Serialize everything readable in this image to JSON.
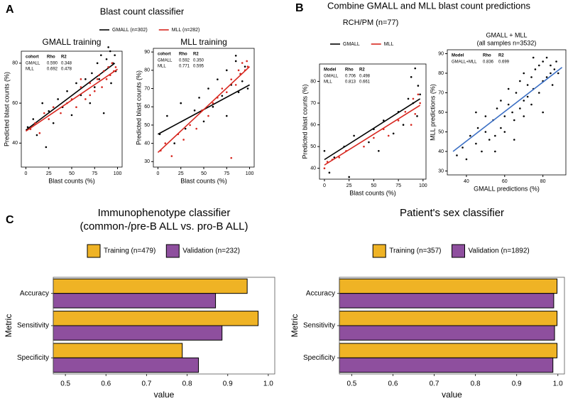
{
  "panels": [
    {
      "label": "A",
      "title": "Blast count classifier"
    },
    {
      "label": "B",
      "title": "Combine GMALL and MLL blast count predictions",
      "subtitle": "RCH/PM (n=77)"
    },
    {
      "label": "C"
    }
  ],
  "chart_data": [
    {
      "type": "scatter",
      "title": "GMALL training",
      "x_label": "Blast counts (%)",
      "y_label": "Predicted blast counts (%)",
      "xlim": [
        -5,
        105
      ],
      "ylim": [
        28,
        86
      ],
      "xticks": [
        0,
        25,
        50,
        75,
        100
      ],
      "yticks": [
        40,
        60,
        80
      ],
      "table": {
        "header": [
          "cohort",
          "Rho",
          "R2"
        ],
        "rows": [
          [
            "GMALL",
            "0.590",
            "0.348"
          ],
          [
            "MLL",
            "0.692",
            "0.478"
          ]
        ]
      },
      "series": [
        {
          "name": "GMALL (n=302)",
          "color": "#000000",
          "x": [
            2,
            8,
            12,
            18,
            22,
            25,
            30,
            35,
            40,
            45,
            50,
            55,
            60,
            65,
            70,
            72,
            75,
            78,
            80,
            82,
            85,
            88,
            90,
            92,
            95,
            97,
            98,
            85,
            90,
            93
          ],
          "y": [
            48,
            52,
            44,
            60,
            38,
            56,
            50,
            62,
            58,
            66,
            54,
            70,
            64,
            72,
            60,
            75,
            68,
            80,
            72,
            84,
            76,
            82,
            78,
            86,
            80,
            84,
            76,
            55,
            88,
            70
          ],
          "fit": {
            "x": [
              0,
              97
            ],
            "y": [
              46.5,
              80
            ]
          }
        },
        {
          "name": "MLL (n=282)",
          "color": "#d7261e",
          "x": [
            5,
            10,
            15,
            20,
            25,
            30,
            38,
            45,
            50,
            55,
            60,
            65,
            70,
            75,
            78,
            80,
            83,
            85,
            88,
            90,
            92,
            94,
            96,
            98,
            70,
            60
          ],
          "y": [
            47,
            50,
            45,
            55,
            52,
            58,
            55,
            60,
            62,
            58,
            68,
            62,
            70,
            66,
            72,
            74,
            68,
            76,
            72,
            78,
            74,
            80,
            76,
            78,
            64,
            72
          ],
          "fit": {
            "x": [
              0,
              100
            ],
            "y": [
              46,
              77
            ]
          }
        }
      ]
    },
    {
      "type": "scatter",
      "title": "MLL training",
      "x_label": "Blast counts (%)",
      "y_label": "Predicted blast counts (%)",
      "xlim": [
        -5,
        105
      ],
      "ylim": [
        27,
        92
      ],
      "xticks": [
        0,
        25,
        50,
        75,
        100
      ],
      "yticks": [
        30,
        40,
        50,
        60,
        70,
        80,
        90
      ],
      "table": {
        "header": [
          "cohort",
          "Rho",
          "R2"
        ],
        "rows": [
          [
            "GMALL",
            "0.592",
            "0.350"
          ],
          [
            "MLL",
            "0.771",
            "0.595"
          ]
        ]
      },
      "series": [
        {
          "color": "#000000",
          "x": [
            2,
            10,
            18,
            25,
            30,
            40,
            45,
            50,
            55,
            60,
            65,
            70,
            75,
            80,
            85,
            88,
            90,
            92,
            95,
            98,
            75,
            85
          ],
          "y": [
            45,
            55,
            40,
            62,
            48,
            58,
            65,
            52,
            70,
            60,
            75,
            66,
            80,
            72,
            85,
            68,
            78,
            74,
            82,
            70,
            55,
            88
          ],
          "fit": {
            "x": [
              0,
              100
            ],
            "y": [
              45,
              72
            ]
          }
        },
        {
          "color": "#d7261e",
          "x": [
            3,
            8,
            15,
            22,
            28,
            35,
            42,
            48,
            55,
            60,
            65,
            70,
            75,
            80,
            85,
            88,
            90,
            92,
            95,
            97,
            98,
            80
          ],
          "y": [
            36,
            40,
            33,
            45,
            42,
            50,
            48,
            58,
            55,
            62,
            65,
            70,
            68,
            75,
            72,
            80,
            78,
            84,
            80,
            85,
            82,
            32
          ],
          "fit": {
            "x": [
              0,
              100
            ],
            "y": [
              35,
              82
            ]
          }
        }
      ]
    },
    {
      "type": "scatter",
      "x_label": "Blast counts (%)",
      "y_label": "Predicted blast counts (%)",
      "xlim": [
        -5,
        103
      ],
      "ylim": [
        35,
        88
      ],
      "xticks": [
        0,
        25,
        50,
        75,
        100
      ],
      "yticks": [
        40,
        50,
        60,
        70,
        80
      ],
      "table": {
        "header": [
          "Model",
          "Rho",
          "R2"
        ],
        "rows": [
          [
            "GMALL",
            "0.706",
            "0.498"
          ],
          [
            "MLL",
            "0.813",
            "0.661"
          ]
        ]
      },
      "series": [
        {
          "name": "GMALL",
          "color": "#000000",
          "x": [
            0,
            5,
            10,
            20,
            25,
            30,
            45,
            50,
            55,
            60,
            70,
            75,
            80,
            85,
            88,
            90,
            92,
            94,
            95,
            97
          ],
          "y": [
            48,
            38,
            45,
            50,
            36,
            55,
            52,
            58,
            48,
            62,
            56,
            66,
            60,
            72,
            82,
            70,
            86,
            64,
            78,
            74
          ],
          "fit": {
            "x": [
              0,
              97
            ],
            "y": [
              44,
              72
            ]
          }
        },
        {
          "name": "MLL",
          "color": "#d7261e",
          "x": [
            0,
            3,
            8,
            15,
            22,
            40,
            50,
            60,
            65,
            75,
            82,
            88,
            90,
            92,
            95,
            97
          ],
          "y": [
            40,
            43,
            44,
            45,
            48,
            50,
            54,
            58,
            55,
            62,
            66,
            60,
            72,
            65,
            74,
            70
          ],
          "fit": {
            "x": [
              0,
              97
            ],
            "y": [
              41.5,
              69
            ]
          }
        }
      ]
    },
    {
      "type": "scatter",
      "title": "GMALL + MLL",
      "subtitle": "(all samples n=3532)",
      "x_label": "GMALL predictions (%)",
      "y_label": "MLL predictions (%)",
      "xlim": [
        30,
        92
      ],
      "ylim": [
        28,
        92
      ],
      "xticks": [
        40,
        60,
        80
      ],
      "yticks": [
        30,
        40,
        50,
        60,
        70,
        80,
        90
      ],
      "table": {
        "header": [
          "Model",
          "Rho",
          "R2"
        ],
        "rows": [
          [
            "GMALL+MLL",
            "0.836",
            "0.699"
          ]
        ]
      },
      "series": [
        {
          "color": "#000000",
          "fit_color": "#3b6fc4",
          "x": [
            35,
            38,
            40,
            42,
            45,
            46,
            48,
            50,
            50,
            52,
            54,
            55,
            56,
            58,
            58,
            60,
            60,
            62,
            62,
            64,
            65,
            66,
            68,
            68,
            70,
            70,
            72,
            72,
            74,
            74,
            75,
            76,
            78,
            78,
            80,
            80,
            82,
            82,
            84,
            84,
            85,
            86,
            87,
            88,
            55,
            65,
            75,
            45,
            70,
            80
          ],
          "y": [
            38,
            42,
            36,
            48,
            44,
            52,
            40,
            50,
            58,
            46,
            56,
            48,
            62,
            52,
            66,
            58,
            50,
            64,
            72,
            60,
            56,
            70,
            62,
            76,
            66,
            58,
            74,
            68,
            78,
            64,
            72,
            82,
            70,
            84,
            76,
            86,
            78,
            88,
            80,
            84,
            74,
            82,
            86,
            80,
            40,
            46,
            88,
            60,
            80,
            60
          ],
          "fit": {
            "x": [
              33,
              90
            ],
            "y": [
              40,
              83
            ]
          }
        }
      ]
    },
    {
      "type": "hbar",
      "title": "Immunophenotype classifier",
      "subtitle": "(common-/pre-B ALL vs. pro-B ALL)",
      "x_label": "value",
      "y_label": "Metric",
      "categories": [
        "Accuracy",
        "Sensitivity",
        "Specificity"
      ],
      "xlim": [
        0.47,
        1.016
      ],
      "xticks": [
        0.5,
        0.6,
        0.7,
        0.8,
        0.9,
        {
          "value": 1,
          "label": "1.0"
        }
      ],
      "series": [
        {
          "name": "Training (n=479)",
          "color": "#efb325",
          "values": [
            0.948,
            0.975,
            0.788
          ]
        },
        {
          "name": "Validation (n=232)",
          "color": "#8e4f9e",
          "values": [
            0.87,
            0.886,
            0.828
          ]
        }
      ]
    },
    {
      "type": "hbar",
      "title": "Patient's sex classifier",
      "x_label": "value",
      "y_label": "Metric",
      "categories": [
        "Accuracy",
        "Sensitivity",
        "Specificity"
      ],
      "xlim": [
        0.47,
        1.016
      ],
      "xticks": [
        0.5,
        0.6,
        0.7,
        0.8,
        0.9,
        {
          "value": 1,
          "label": "1.0"
        }
      ],
      "series": [
        {
          "name": "Training (n=357)",
          "color": "#efb325",
          "values": [
            0.998,
            0.998,
            0.998
          ]
        },
        {
          "name": "Validation (n=1892)",
          "color": "#8e4f9e",
          "values": [
            0.99,
            0.992,
            0.988
          ]
        }
      ]
    }
  ]
}
